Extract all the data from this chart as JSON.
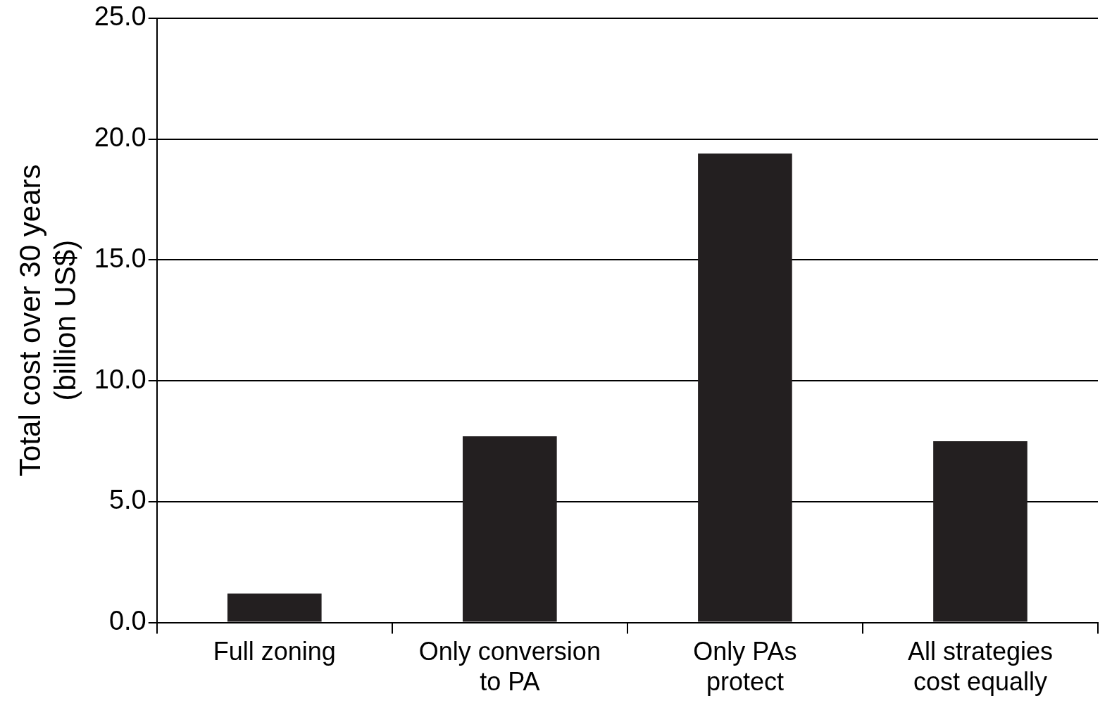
{
  "chart_data": {
    "type": "bar",
    "ylabel": "Total cost over 30 years\n(billion US$)",
    "categories": [
      "Full zoning",
      "Only conversion to PA",
      "Only PAs protect",
      "All strategies cost equally"
    ],
    "values": [
      1.2,
      7.7,
      19.4,
      7.5
    ],
    "color": "#231f20",
    "ylim": [
      0,
      25
    ],
    "yticks": [
      {
        "value": 0,
        "label": "0.0"
      },
      {
        "value": 5,
        "label": "5.0"
      },
      {
        "value": 10,
        "label": "10.0"
      },
      {
        "value": 15,
        "label": "15.0"
      },
      {
        "value": 20,
        "label": "20.0"
      },
      {
        "value": 25,
        "label": "25.0"
      }
    ],
    "grid": "y"
  }
}
